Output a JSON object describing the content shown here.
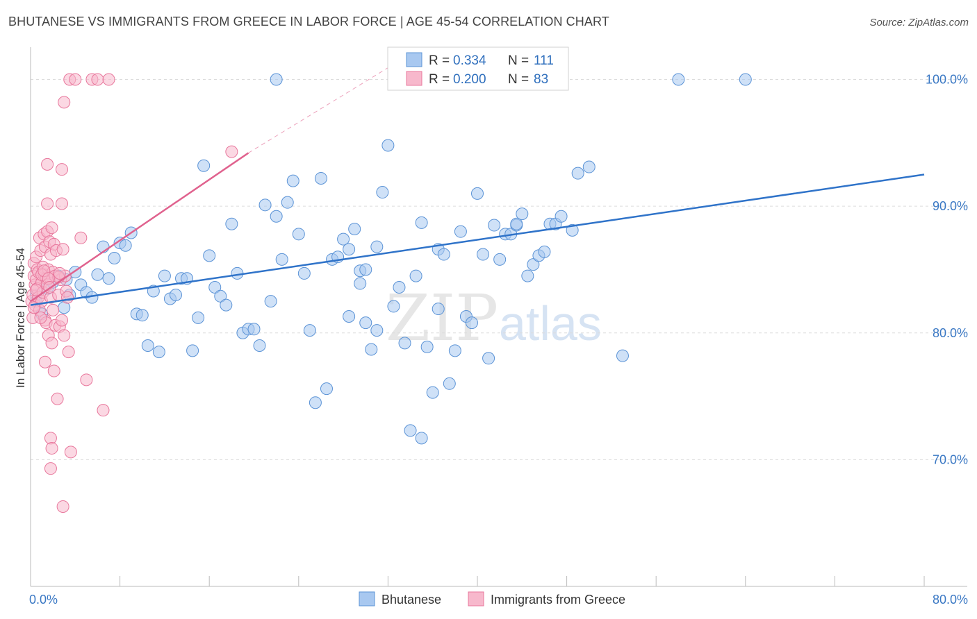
{
  "header": {
    "title": "BHUTANESE VS IMMIGRANTS FROM GREECE IN LABOR FORCE | AGE 45-54 CORRELATION CHART",
    "source": "Source: ZipAtlas.com"
  },
  "watermark": {
    "zip": "ZIP",
    "atlas": "atlas"
  },
  "chart_data": {
    "type": "scatter",
    "title": "BHUTANESE VS IMMIGRANTS FROM GREECE IN LABOR FORCE | AGE 45-54 CORRELATION CHART",
    "xlabel": "",
    "ylabel": "In Labor Force | Age 45-54",
    "xlim": [
      0,
      80
    ],
    "ylim": [
      60,
      102
    ],
    "x_tick_labels": {
      "left": "0.0%",
      "right": "80.0%"
    },
    "y_ticks": [
      {
        "value": 70,
        "label": "70.0%"
      },
      {
        "value": 80,
        "label": "80.0%"
      },
      {
        "value": 90,
        "label": "90.0%"
      },
      {
        "value": 100,
        "label": "100.0%"
      }
    ],
    "grid": true,
    "legend_stats": [
      {
        "r_label": "R =",
        "r_value": "0.334",
        "n_label": "N =",
        "n_value": "111"
      },
      {
        "r_label": "R =",
        "r_value": "0.200",
        "n_label": "N =",
        "n_value": "83"
      }
    ],
    "series": [
      {
        "name": "Bhutanese",
        "color": "#a8c8f0",
        "edge": "#5b93d6",
        "line_color": "#2f73c9",
        "trend": {
          "x": [
            0,
            80
          ],
          "y": [
            82.2,
            92.5
          ]
        },
        "points": [
          [
            0.5,
            83.0
          ],
          [
            0.5,
            82.5
          ],
          [
            1.0,
            81.5
          ],
          [
            1.5,
            83.5
          ],
          [
            2.0,
            84.0
          ],
          [
            2.5,
            84.5
          ],
          [
            3.0,
            82.0
          ],
          [
            3.2,
            84.2
          ],
          [
            3.5,
            83.0
          ],
          [
            4.0,
            84.8
          ],
          [
            4.5,
            83.8
          ],
          [
            5.0,
            83.2
          ],
          [
            5.5,
            82.8
          ],
          [
            6.0,
            84.6
          ],
          [
            6.5,
            86.8
          ],
          [
            7.0,
            84.3
          ],
          [
            7.5,
            85.9
          ],
          [
            8.0,
            87.1
          ],
          [
            8.5,
            86.9
          ],
          [
            9.0,
            87.9
          ],
          [
            9.5,
            81.5
          ],
          [
            10.0,
            81.4
          ],
          [
            10.5,
            79.0
          ],
          [
            11.0,
            83.3
          ],
          [
            11.5,
            78.5
          ],
          [
            12.0,
            84.5
          ],
          [
            12.5,
            82.7
          ],
          [
            13.0,
            83.0
          ],
          [
            13.5,
            84.3
          ],
          [
            14.0,
            84.3
          ],
          [
            14.5,
            78.6
          ],
          [
            15.0,
            81.2
          ],
          [
            15.5,
            93.2
          ],
          [
            16.0,
            86.1
          ],
          [
            16.5,
            83.6
          ],
          [
            17.0,
            82.9
          ],
          [
            17.5,
            82.2
          ],
          [
            18.0,
            88.6
          ],
          [
            18.5,
            84.7
          ],
          [
            19.0,
            80.0
          ],
          [
            19.5,
            80.3
          ],
          [
            20.0,
            80.3
          ],
          [
            20.5,
            79.0
          ],
          [
            21.0,
            90.1
          ],
          [
            21.5,
            82.5
          ],
          [
            22.0,
            89.2
          ],
          [
            22.5,
            85.8
          ],
          [
            23.0,
            90.3
          ],
          [
            23.5,
            92.0
          ],
          [
            24.0,
            87.8
          ],
          [
            24.5,
            84.7
          ],
          [
            25.0,
            80.2
          ],
          [
            25.5,
            74.5
          ],
          [
            26.0,
            92.2
          ],
          [
            26.5,
            75.6
          ],
          [
            27.0,
            85.8
          ],
          [
            27.5,
            86.0
          ],
          [
            28.0,
            87.4
          ],
          [
            28.5,
            86.6
          ],
          [
            29.0,
            88.2
          ],
          [
            29.5,
            84.9
          ],
          [
            30.0,
            85.0
          ],
          [
            30.5,
            78.7
          ],
          [
            31.0,
            86.8
          ],
          [
            31.5,
            91.1
          ],
          [
            32.0,
            94.8
          ],
          [
            32.5,
            82.1
          ],
          [
            33.0,
            83.6
          ],
          [
            33.5,
            79.2
          ],
          [
            34.0,
            72.3
          ],
          [
            34.5,
            84.5
          ],
          [
            35.0,
            71.7
          ],
          [
            35.5,
            78.9
          ],
          [
            36.0,
            75.3
          ],
          [
            36.5,
            86.6
          ],
          [
            37.0,
            86.2
          ],
          [
            37.5,
            76.0
          ],
          [
            38.0,
            78.6
          ],
          [
            38.5,
            88.0
          ],
          [
            39.0,
            81.3
          ],
          [
            39.5,
            80.8
          ],
          [
            40.0,
            91.0
          ],
          [
            40.5,
            86.2
          ],
          [
            41.0,
            78.0
          ],
          [
            41.5,
            88.5
          ],
          [
            42.0,
            85.8
          ],
          [
            42.5,
            87.8
          ],
          [
            43.0,
            87.8
          ],
          [
            43.5,
            88.5
          ],
          [
            44.0,
            89.4
          ],
          [
            44.5,
            84.5
          ],
          [
            45.0,
            85.4
          ],
          [
            45.5,
            86.1
          ],
          [
            46.0,
            86.4
          ],
          [
            46.5,
            88.6
          ],
          [
            47.0,
            88.6
          ],
          [
            47.5,
            89.2
          ],
          [
            48.5,
            88.1
          ],
          [
            49.0,
            92.6
          ],
          [
            50.0,
            93.1
          ],
          [
            22.0,
            100.0
          ],
          [
            28.5,
            81.3
          ],
          [
            30.0,
            80.8
          ],
          [
            31.0,
            80.2
          ],
          [
            35.0,
            88.7
          ],
          [
            36.5,
            81.9
          ],
          [
            43.5,
            88.6
          ],
          [
            53.0,
            78.2
          ],
          [
            58.0,
            100.0
          ],
          [
            64.0,
            100.0
          ],
          [
            29.5,
            83.9
          ]
        ]
      },
      {
        "name": "Immigrants from Greece",
        "color": "#f7b8cc",
        "edge": "#e8779c",
        "line_color": "#e0628e",
        "trend": {
          "x": [
            0,
            19.5
          ],
          "y": [
            82.5,
            94.2
          ]
        },
        "trend_ext": {
          "x": [
            19.5,
            34.0
          ],
          "y": [
            94.2,
            102.0
          ]
        },
        "points": [
          [
            0.1,
            82.5
          ],
          [
            0.2,
            83.0
          ],
          [
            0.2,
            81.2
          ],
          [
            0.3,
            84.5
          ],
          [
            0.3,
            85.5
          ],
          [
            0.4,
            83.8
          ],
          [
            0.4,
            82.2
          ],
          [
            0.5,
            84.2
          ],
          [
            0.5,
            86.0
          ],
          [
            0.6,
            85.0
          ],
          [
            0.6,
            83.5
          ],
          [
            0.7,
            84.8
          ],
          [
            0.7,
            82.8
          ],
          [
            0.8,
            81.8
          ],
          [
            0.8,
            87.5
          ],
          [
            0.9,
            86.5
          ],
          [
            1.0,
            84.0
          ],
          [
            1.0,
            82.5
          ],
          [
            1.1,
            85.2
          ],
          [
            1.1,
            83.2
          ],
          [
            1.2,
            87.8
          ],
          [
            1.2,
            84.6
          ],
          [
            1.3,
            86.8
          ],
          [
            1.3,
            81.0
          ],
          [
            1.4,
            84.3
          ],
          [
            1.4,
            80.8
          ],
          [
            1.5,
            88.0
          ],
          [
            1.5,
            83.8
          ],
          [
            1.6,
            85.0
          ],
          [
            1.6,
            79.8
          ],
          [
            1.7,
            87.2
          ],
          [
            1.7,
            84.4
          ],
          [
            1.8,
            86.2
          ],
          [
            1.8,
            82.8
          ],
          [
            1.9,
            88.3
          ],
          [
            1.9,
            79.2
          ],
          [
            2.0,
            84.8
          ],
          [
            2.0,
            81.8
          ],
          [
            2.1,
            87.0
          ],
          [
            2.1,
            77.0
          ],
          [
            2.2,
            84.5
          ],
          [
            2.2,
            80.6
          ],
          [
            2.3,
            86.5
          ],
          [
            2.4,
            74.8
          ],
          [
            2.5,
            83.0
          ],
          [
            2.6,
            80.5
          ],
          [
            2.7,
            84.2
          ],
          [
            2.8,
            81.0
          ],
          [
            2.9,
            86.6
          ],
          [
            3.0,
            79.8
          ],
          [
            3.1,
            84.5
          ],
          [
            3.2,
            83.3
          ],
          [
            3.3,
            82.8
          ],
          [
            3.4,
            78.5
          ],
          [
            3.5,
            100.0
          ],
          [
            4.0,
            100.0
          ],
          [
            4.5,
            87.5
          ],
          [
            5.0,
            76.3
          ],
          [
            5.5,
            100.0
          ],
          [
            6.0,
            100.0
          ],
          [
            6.5,
            73.9
          ],
          [
            7.0,
            100.0
          ],
          [
            3.0,
            98.2
          ],
          [
            1.5,
            93.3
          ],
          [
            2.8,
            92.9
          ],
          [
            1.5,
            90.2
          ],
          [
            2.8,
            90.2
          ],
          [
            1.8,
            71.7
          ],
          [
            1.9,
            70.9
          ],
          [
            3.6,
            70.6
          ],
          [
            1.8,
            69.3
          ],
          [
            2.9,
            66.3
          ],
          [
            18.0,
            94.3
          ],
          [
            0.3,
            82.0
          ],
          [
            0.9,
            81.2
          ],
          [
            1.0,
            84.6
          ],
          [
            1.2,
            84.9
          ],
          [
            2.5,
            84.4
          ],
          [
            2.6,
            84.7
          ],
          [
            1.3,
            77.7
          ],
          [
            1.6,
            84.3
          ],
          [
            1.7,
            83.6
          ],
          [
            0.5,
            83.4
          ]
        ]
      }
    ]
  },
  "bottom_legend": {
    "items": [
      "Bhutanese",
      "Immigrants from Greece"
    ]
  }
}
